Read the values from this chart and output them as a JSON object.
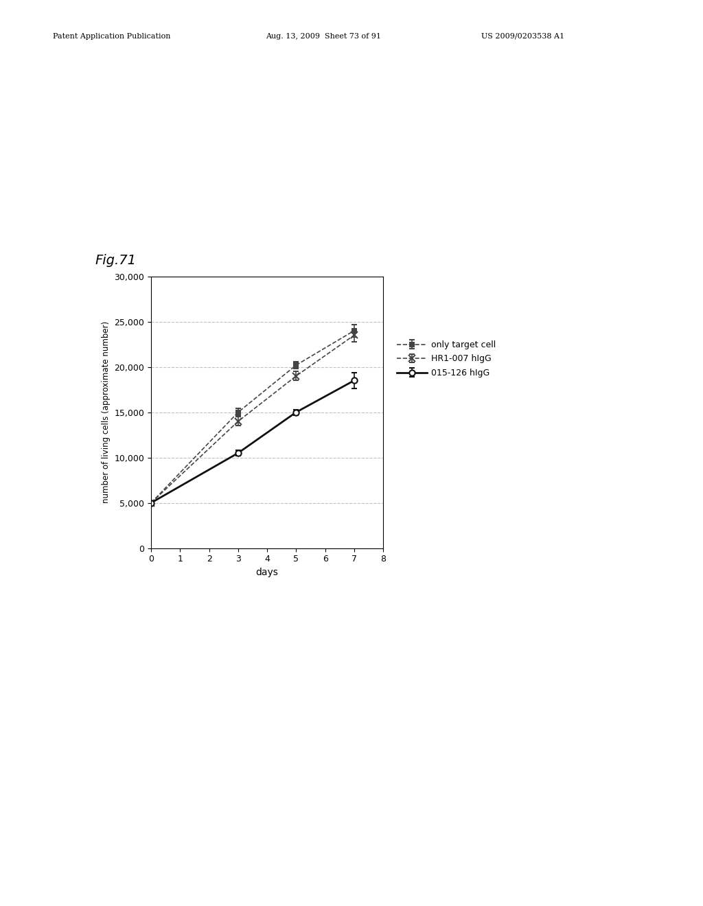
{
  "title": "Fig.71",
  "xlabel": "days",
  "ylabel": "number of living cells (approximate number)",
  "xlim": [
    0,
    8
  ],
  "ylim": [
    0,
    30000
  ],
  "xticks": [
    0,
    1,
    2,
    3,
    4,
    5,
    6,
    7,
    8
  ],
  "yticks": [
    0,
    5000,
    10000,
    15000,
    20000,
    25000,
    30000
  ],
  "series": [
    {
      "label": "only target cell",
      "x": [
        0,
        3,
        5,
        7
      ],
      "y": [
        5000,
        15000,
        20200,
        24000
      ],
      "yerr": [
        200,
        400,
        400,
        700
      ],
      "color": "#444444",
      "linestyle": "--",
      "marker": "s",
      "markersize": 5,
      "linewidth": 1.2
    },
    {
      "label": "HR1-007 hIgG",
      "x": [
        0,
        3,
        5,
        7
      ],
      "y": [
        5000,
        14000,
        19000,
        23500
      ],
      "yerr": [
        200,
        500,
        500,
        700
      ],
      "color": "#444444",
      "linestyle": "--",
      "marker": "x",
      "markersize": 7,
      "linewidth": 1.2
    },
    {
      "label": "015-126 hIgG",
      "x": [
        0,
        3,
        5,
        7
      ],
      "y": [
        5000,
        10500,
        15000,
        18500
      ],
      "yerr": [
        200,
        300,
        300,
        900
      ],
      "color": "#111111",
      "linestyle": "-",
      "marker": "o",
      "markersize": 6,
      "linewidth": 2.0
    }
  ],
  "grid_color": "#999999",
  "grid_linestyle": "--",
  "grid_alpha": 0.6,
  "background_color": "#ffffff",
  "header_left": "Patent Application Publication",
  "header_mid": "Aug. 13, 2009  Sheet 73 of 91",
  "header_right": "US 2009/0203538 A1"
}
